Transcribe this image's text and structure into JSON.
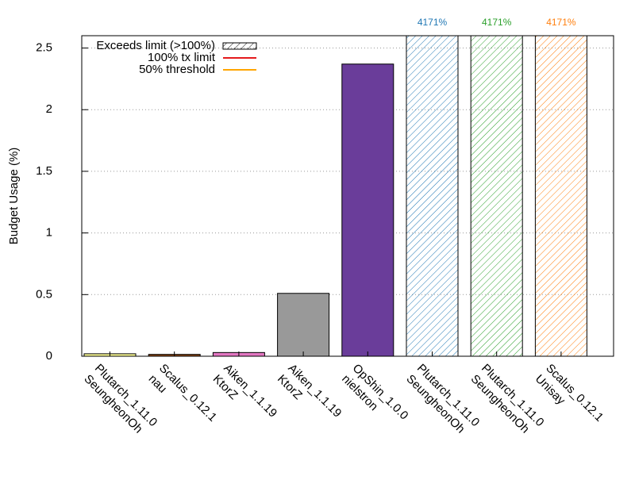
{
  "chart_data": {
    "type": "bar",
    "ylabel": "Budget Usage (%)",
    "categories": [
      [
        "Plutarch_1.11.0",
        "SeungheonOh"
      ],
      [
        "Scalus_0.12.1",
        "nau"
      ],
      [
        "Aiken_1.1.19",
        "KtorZ"
      ],
      [
        "Aiken_1.1.19",
        "KtorZ"
      ],
      [
        "OpShin_1.0.0",
        "nielstron"
      ],
      [
        "Plutarch_1.11.0",
        "SeungheonOh"
      ],
      [
        "Plutarch_1.11.0",
        "SeungheonOh"
      ],
      [
        "Scalus_0.12.1",
        "Unisay"
      ]
    ],
    "values": [
      0.02,
      0.015,
      0.03,
      0.51,
      2.37,
      4171,
      4171,
      4171
    ],
    "value_labels": [
      null,
      null,
      null,
      null,
      null,
      "4171%",
      "4171%",
      "4171%"
    ],
    "colors": [
      "#ffff99",
      "#8b4513",
      "#e377c2",
      "#999999",
      "#6a3d9a",
      "#1f77b4",
      "#2ca02c",
      "#ff7f0e"
    ],
    "hatched": [
      false,
      false,
      false,
      false,
      false,
      true,
      true,
      true
    ],
    "ylim": [
      0,
      2.6
    ],
    "yticks": [
      0,
      0.5,
      1,
      1.5,
      2,
      2.5
    ],
    "grid": true,
    "legend": [
      {
        "name": "Exceeds limit (>100%)",
        "kind": "hatch",
        "color": "#000000"
      },
      {
        "name": "100% tx limit",
        "kind": "line",
        "color": "#e41a1c"
      },
      {
        "name": "50% threshold",
        "kind": "line",
        "color": "#ffa500"
      }
    ],
    "legend_position": "top-left"
  }
}
